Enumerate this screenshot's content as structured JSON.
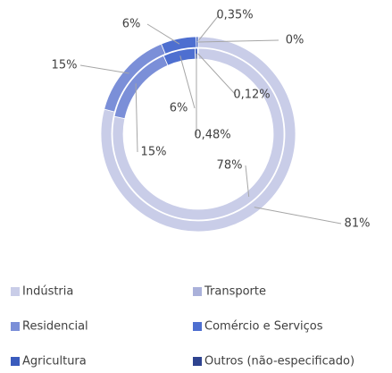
{
  "chart_data": {
    "type": "double-donut",
    "categories": [
      "Indústria",
      "Transporte",
      "Residencial",
      "Comércio e Serviços",
      "Agricultura",
      "Outros (não-especificado)"
    ],
    "colors": [
      "#c9cde8",
      "#aab1da",
      "#7b8fd8",
      "#4e6fd0",
      "#3a5bbd",
      "#2e438f"
    ],
    "series": [
      {
        "values": [
          81,
          null,
          15,
          6,
          0.35,
          0
        ],
        "value_labels": [
          "81%",
          null,
          "15%",
          "6%",
          "0,35%",
          "0%"
        ]
      },
      {
        "values": [
          78,
          null,
          15,
          6,
          0.48,
          0.12
        ],
        "value_labels": [
          "78%",
          null,
          "15%",
          "6%",
          "0,48%",
          "0,12%"
        ]
      }
    ]
  }
}
